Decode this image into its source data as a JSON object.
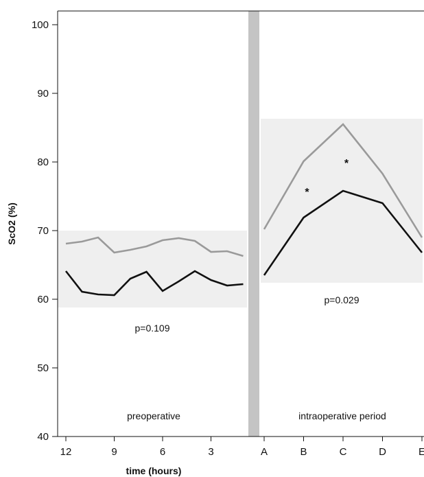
{
  "chart_data": {
    "type": "line",
    "ylabel": "ScO2 (%)",
    "xlabel": "time (hours)",
    "ylim": [
      40,
      102
    ],
    "yticks": [
      40,
      50,
      60,
      70,
      80,
      90,
      100
    ],
    "colors": {
      "gray_series": "#9a9a9a",
      "black_series": "#111111",
      "band_fill": "#efefef",
      "divider": "#c4c4c4"
    },
    "panels": [
      {
        "id": "preoperative",
        "label": "preoperative",
        "x_ticks": [
          "12",
          "9",
          "6",
          "3"
        ],
        "x_tick_values": [
          12,
          9,
          6,
          3
        ],
        "x_domain": [
          12,
          0
        ],
        "band": [
          58.8,
          70
        ],
        "annotation": "p=0.109",
        "series": [
          {
            "color": "#9a9a9a",
            "x": [
              12,
              11,
              10,
              9,
              8,
              7,
              6,
              5,
              4,
              3,
              2,
              1
            ],
            "values": [
              68.1,
              68.4,
              69.0,
              66.8,
              67.2,
              67.7,
              68.6,
              68.9,
              68.5,
              66.9,
              67.0,
              66.3
            ]
          },
          {
            "color": "#111111",
            "x": [
              12,
              11,
              10,
              9,
              8,
              7,
              6,
              5,
              4,
              3,
              2,
              1
            ],
            "values": [
              64.1,
              61.1,
              60.7,
              60.6,
              63.0,
              64.0,
              61.2,
              62.6,
              64.1,
              62.8,
              62.0,
              62.2
            ]
          }
        ]
      },
      {
        "id": "intraoperative",
        "label": "intraoperative period",
        "categories": [
          "A",
          "B",
          "C",
          "D",
          "E"
        ],
        "band": [
          62.4,
          86.3
        ],
        "annotation": "p=0.029",
        "stars": [
          {
            "category": "B",
            "value": 75.9,
            "text": "*"
          },
          {
            "category": "C",
            "value": 80.1,
            "text": "*"
          }
        ],
        "series": [
          {
            "color": "#9a9a9a",
            "values": [
              70.2,
              80.1,
              85.5,
              78.3,
              69.0
            ]
          },
          {
            "color": "#111111",
            "values": [
              63.5,
              71.9,
              75.8,
              74.0,
              66.8
            ]
          }
        ]
      }
    ]
  }
}
